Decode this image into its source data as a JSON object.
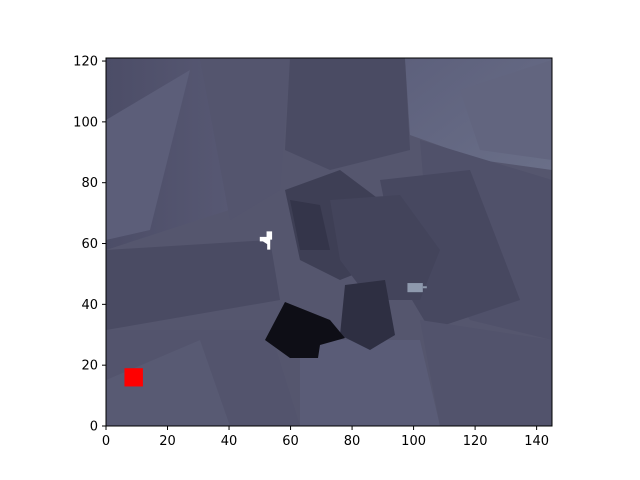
{
  "chart_data": {
    "type": "heatmap",
    "title": "",
    "xlabel": "",
    "ylabel": "",
    "xlim": [
      0,
      145
    ],
    "ylim": [
      0,
      121
    ],
    "x_ticks": [
      0,
      20,
      40,
      60,
      80,
      100,
      120,
      140
    ],
    "y_ticks": [
      0,
      20,
      40,
      60,
      80,
      100,
      120
    ],
    "grid": false,
    "legend": "none",
    "colors": {
      "background": "#55566e",
      "dark_region": "#0e0e16",
      "white_marker": "#ffffff",
      "red_marker": "#ff0000",
      "gray_marker": "#8e99ad"
    },
    "markers": [
      {
        "kind": "red-square",
        "x": [
          6,
          12
        ],
        "y": [
          13,
          19
        ],
        "color": "#ff0000"
      },
      {
        "kind": "white-blob",
        "x": [
          50,
          54
        ],
        "y": [
          58,
          64
        ],
        "color": "#ffffff"
      },
      {
        "kind": "gray-block",
        "x": [
          98,
          103
        ],
        "y": [
          44,
          47
        ],
        "color": "#8e99ad"
      }
    ]
  }
}
